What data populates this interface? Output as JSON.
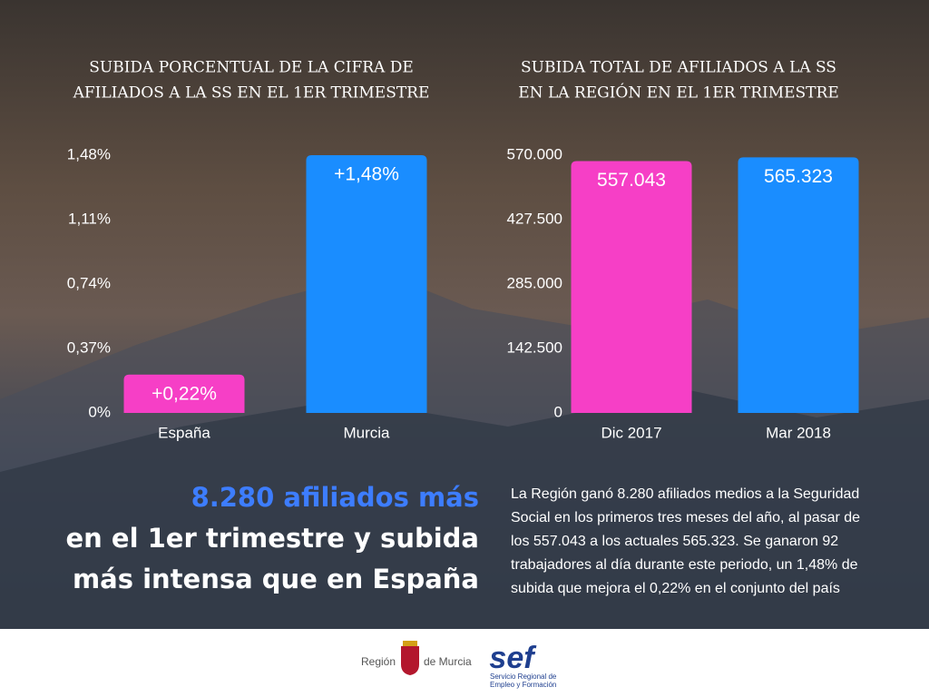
{
  "chart_data": [
    {
      "type": "bar",
      "title": [
        "SUBIDA PORCENTUAL DE LA CIFRA DE",
        "AFILIADOS A LA SS EN EL 1ER TRIMESTRE"
      ],
      "categories": [
        "España",
        "Murcia"
      ],
      "values": [
        0.22,
        1.48
      ],
      "value_labels": [
        "+0,22%",
        "+1,48%"
      ],
      "colors": [
        "#f63fc6",
        "#1a8dff"
      ],
      "ylim": [
        0,
        1.48
      ],
      "yticks": [
        {
          "value": 0,
          "label": "0%"
        },
        {
          "value": 0.37,
          "label": "0,37%"
        },
        {
          "value": 0.74,
          "label": "0,74%"
        },
        {
          "value": 1.11,
          "label": "1,11%"
        },
        {
          "value": 1.48,
          "label": "1,48%"
        }
      ]
    },
    {
      "type": "bar",
      "title": [
        "SUBIDA TOTAL DE AFILIADOS A LA SS",
        "EN LA REGIÓN EN EL 1ER TRIMESTRE"
      ],
      "categories": [
        "Dic 2017",
        "Mar 2018"
      ],
      "values": [
        557043,
        565323
      ],
      "value_labels": [
        "557.043",
        "565.323"
      ],
      "colors": [
        "#f63fc6",
        "#1a8dff"
      ],
      "ylim": [
        0,
        570000
      ],
      "yticks": [
        0,
        {
          "value": 142500,
          "label": "142.500"
        },
        {
          "value": 285000,
          "label": "285.000"
        },
        {
          "value": 427500,
          "label": "427.500"
        },
        {
          "value": 570000,
          "label": "570.000"
        }
      ]
    }
  ],
  "headline": [
    "8.280 afiliados más",
    "en el 1er trimestre y subida",
    "más intensa que en España"
  ],
  "body": [
    "La Región ganó 8.280 afiliados medios a la Seguridad",
    "Social en los primeros tres meses del año, al pasar de",
    "los 557.043 a los actuales 565.323. Se ganaron 92",
    "trabajadores al día durante este periodo, un 1,48% de",
    "subida que mejora el 0,22% en el conjunto del país"
  ],
  "footer": {
    "region_left": "Región",
    "region_right": "de Murcia",
    "sef_logo": "sef",
    "sef_lines": [
      "Servicio Regional de",
      "Empleo y Formación"
    ]
  }
}
